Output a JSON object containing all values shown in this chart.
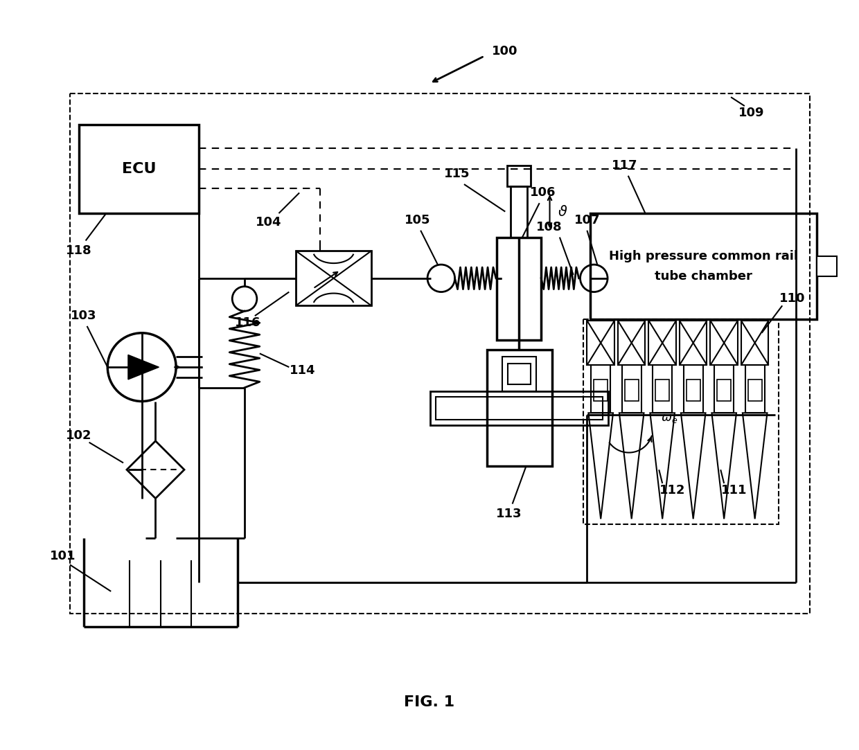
{
  "title": "FIG. 1",
  "bg_color": "#ffffff",
  "lc": "#000000",
  "figsize": [
    12.4,
    10.83
  ],
  "dpi": 100,
  "ecu_label": "ECU",
  "rail_text1": "High pressure common rail",
  "rail_text2": "tube chamber",
  "omega_label": "ω",
  "theta_label": "ϑ"
}
